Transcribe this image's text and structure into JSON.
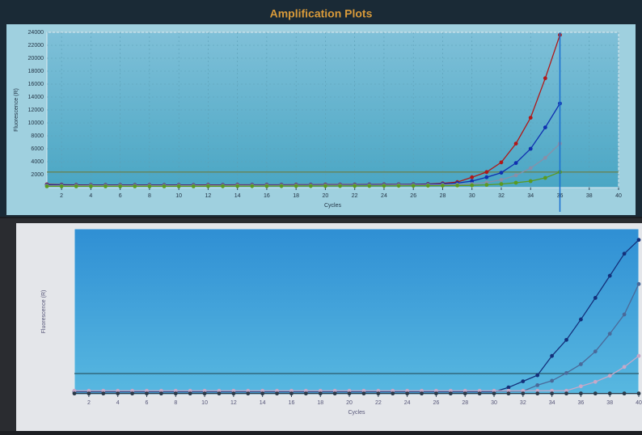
{
  "chart_data": [
    {
      "type": "line",
      "title": "Amplification Plots",
      "x_label": "Cycles",
      "y_label": "Fluorescence (R)",
      "x": [
        1,
        2,
        3,
        4,
        5,
        6,
        7,
        8,
        9,
        10,
        11,
        12,
        13,
        14,
        15,
        16,
        17,
        18,
        19,
        20,
        21,
        22,
        23,
        24,
        25,
        26,
        27,
        28,
        29,
        30,
        31,
        32,
        33,
        34,
        35,
        36
      ],
      "xlim": [
        1,
        40
      ],
      "xticks": [
        2,
        4,
        6,
        8,
        10,
        12,
        14,
        16,
        18,
        20,
        22,
        24,
        26,
        28,
        30,
        32,
        34,
        36,
        38,
        40
      ],
      "ylim": [
        0,
        24000
      ],
      "yticks": [
        2000,
        4000,
        6000,
        8000,
        10000,
        12000,
        14000,
        16000,
        18000,
        20000,
        22000,
        24000
      ],
      "grid": true,
      "threshold": 2400,
      "threshold_color": "#6b7a3a",
      "cursor_x": 36,
      "cursor_color": "#1a6fd0",
      "series": [
        {
          "color": "#b01818",
          "values": [
            500,
            450,
            420,
            400,
            400,
            400,
            400,
            400,
            400,
            400,
            400,
            420,
            420,
            430,
            430,
            440,
            440,
            450,
            450,
            460,
            460,
            470,
            480,
            490,
            500,
            520,
            560,
            650,
            850,
            1600,
            2400,
            3900,
            6800,
            10800,
            16900,
            23600
          ]
        },
        {
          "color": "#1030b0",
          "values": [
            400,
            380,
            360,
            350,
            350,
            350,
            350,
            350,
            350,
            350,
            360,
            360,
            370,
            370,
            380,
            380,
            390,
            390,
            400,
            400,
            410,
            420,
            430,
            440,
            450,
            470,
            500,
            560,
            700,
            1000,
            1600,
            2300,
            3800,
            6000,
            9300,
            13000
          ]
        },
        {
          "color": "#8a8fa8",
          "values": [
            300,
            300,
            300,
            300,
            300,
            300,
            300,
            300,
            300,
            300,
            300,
            310,
            310,
            320,
            320,
            330,
            330,
            340,
            340,
            350,
            350,
            360,
            360,
            370,
            380,
            390,
            400,
            420,
            460,
            550,
            800,
            1200,
            1900,
            3000,
            4600,
            6800
          ]
        },
        {
          "color": "#5a9a20",
          "values": [
            200,
            200,
            200,
            200,
            200,
            200,
            200,
            200,
            200,
            200,
            200,
            210,
            210,
            220,
            220,
            230,
            230,
            240,
            240,
            250,
            250,
            260,
            260,
            270,
            270,
            280,
            290,
            300,
            320,
            350,
            420,
            550,
            750,
            1000,
            1500,
            2400
          ]
        }
      ]
    },
    {
      "type": "line",
      "x_label": "Cycles",
      "y_label": "Fluorescence (R)",
      "x": [
        1,
        2,
        3,
        4,
        5,
        6,
        7,
        8,
        9,
        10,
        11,
        12,
        13,
        14,
        15,
        16,
        17,
        18,
        19,
        20,
        21,
        22,
        23,
        24,
        25,
        26,
        27,
        28,
        29,
        30,
        31,
        32,
        33,
        34,
        35,
        36,
        37,
        38,
        39,
        40
      ],
      "xlim": [
        1,
        40
      ],
      "xticks": [
        2,
        4,
        6,
        8,
        10,
        12,
        14,
        16,
        18,
        20,
        22,
        24,
        26,
        28,
        30,
        32,
        34,
        36,
        38,
        40
      ],
      "ylim": [
        0,
        30000
      ],
      "grid": false,
      "threshold": 3800,
      "threshold_color": "#2a5a6a",
      "series": [
        {
          "color": "#14307a",
          "values": [
            500,
            500,
            500,
            500,
            500,
            500,
            500,
            500,
            500,
            500,
            500,
            500,
            500,
            500,
            500,
            500,
            500,
            500,
            500,
            500,
            500,
            500,
            500,
            500,
            500,
            500,
            500,
            500,
            500,
            500,
            1300,
            2400,
            3500,
            7000,
            9900,
            13600,
            17500,
            21500,
            25500,
            28000
          ]
        },
        {
          "color": "#4a6a9a",
          "values": [
            600,
            600,
            600,
            600,
            600,
            600,
            600,
            600,
            600,
            600,
            600,
            600,
            600,
            600,
            600,
            600,
            600,
            600,
            600,
            600,
            600,
            600,
            600,
            600,
            600,
            600,
            600,
            600,
            600,
            600,
            600,
            600,
            1700,
            2500,
            3900,
            5500,
            7800,
            11000,
            14500,
            20000
          ]
        },
        {
          "color": "#c8a8c8",
          "values": [
            700,
            700,
            700,
            700,
            700,
            700,
            700,
            700,
            700,
            700,
            700,
            700,
            700,
            700,
            700,
            700,
            700,
            700,
            700,
            700,
            700,
            700,
            700,
            700,
            700,
            700,
            700,
            700,
            700,
            700,
            700,
            700,
            700,
            700,
            700,
            1500,
            2300,
            3400,
            5000,
            7000
          ]
        },
        {
          "color": "#2a3a4a",
          "values": [
            200,
            200,
            200,
            200,
            200,
            200,
            200,
            200,
            200,
            200,
            200,
            200,
            200,
            200,
            200,
            200,
            200,
            200,
            200,
            200,
            200,
            200,
            200,
            200,
            200,
            200,
            200,
            200,
            200,
            200,
            200,
            200,
            200,
            200,
            200,
            200,
            200,
            200,
            200,
            200
          ]
        }
      ]
    }
  ]
}
